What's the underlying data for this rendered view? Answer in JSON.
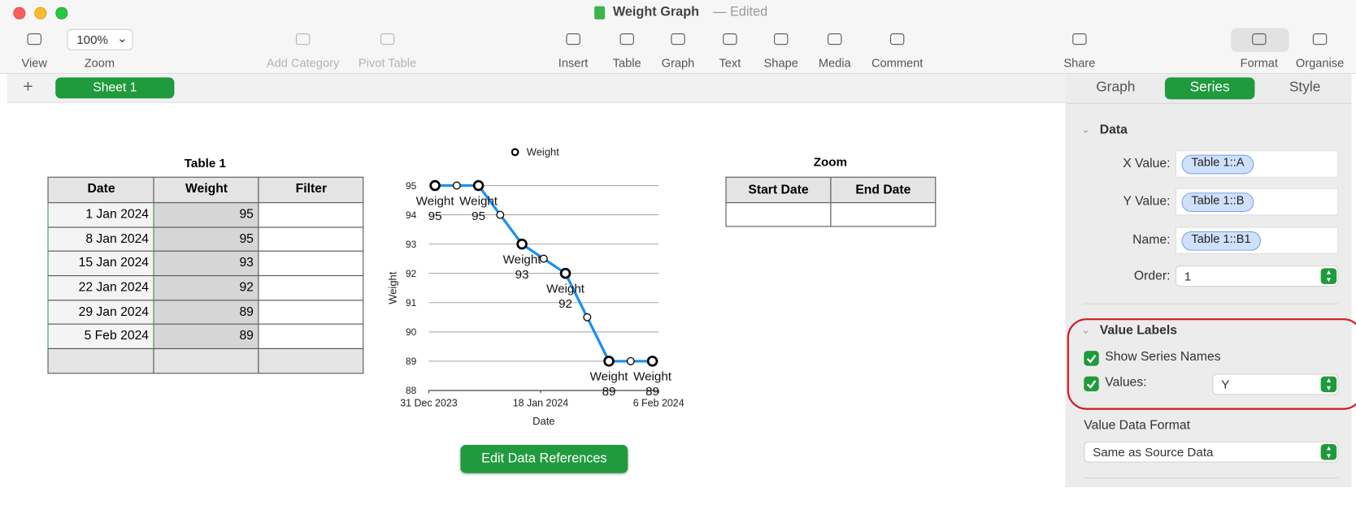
{
  "window": {
    "title": "Weight Graph",
    "status": "— Edited"
  },
  "toolbar": {
    "items": [
      "View",
      "Zoom",
      "Add Category",
      "Pivot Table",
      "Insert",
      "Table",
      "Graph",
      "Text",
      "Shape",
      "Media",
      "Comment",
      "Share",
      "Format",
      "Organise"
    ],
    "zoom_value": "100%"
  },
  "sheets": [
    "Sheet 1"
  ],
  "table": {
    "title": "Table 1",
    "headers": [
      "Date",
      "Weight",
      "Filter"
    ],
    "rows": [
      [
        "1 Jan 2024",
        95
      ],
      [
        "8 Jan 2024",
        95
      ],
      [
        "15 Jan 2024",
        93
      ],
      [
        "22 Jan 2024",
        92
      ],
      [
        "29 Jan 2024",
        89
      ],
      [
        "5 Feb 2024",
        89
      ]
    ]
  },
  "zoom_table": {
    "title": "Zoom",
    "headers": [
      "Start Date",
      "End Date"
    ]
  },
  "chart_data": {
    "type": "line",
    "x_label": "Date",
    "y_label": "Weight",
    "x": [
      "2024-01-01",
      "2024-01-08",
      "2024-01-15",
      "2024-01-22",
      "2024-01-29",
      "2024-02-05"
    ],
    "series": [
      {
        "name": "Weight",
        "color": "#1e90ee",
        "values": [
          95,
          95,
          93,
          92,
          89,
          89
        ]
      }
    ],
    "xlim": [
      "2023-12-31",
      "2024-02-06"
    ],
    "xticks": [
      {
        "value": "2023-12-31",
        "label": "31 Dec 2023"
      },
      {
        "value": "2024-01-18",
        "label": "18 Jan 2024"
      },
      {
        "value": "2024-02-06",
        "label": "6 Feb 2024"
      }
    ],
    "ylim": [
      88,
      95
    ],
    "yticks": [
      88,
      89,
      90,
      91,
      92,
      93,
      94,
      95
    ],
    "grid": true,
    "legend": "top"
  },
  "button": "Edit Data References",
  "sidebar": {
    "tabs": [
      "Graph",
      "Series",
      "Style"
    ],
    "data_section": "Data",
    "fields": [
      {
        "label": "X Value:",
        "value": "Table 1::A"
      },
      {
        "label": "Y Value:",
        "value": "Table 1::B"
      },
      {
        "label": "Name:",
        "value": "Table 1::B1"
      }
    ],
    "order_label": "Order:",
    "order_value": "1",
    "value_labels_section": "Value Labels",
    "show_series_names": "Show Series Names",
    "values_label": "Values:",
    "values_value": "Y",
    "value_data_format_label": "Value Data Format",
    "value_data_format": "Same as Source Data"
  }
}
